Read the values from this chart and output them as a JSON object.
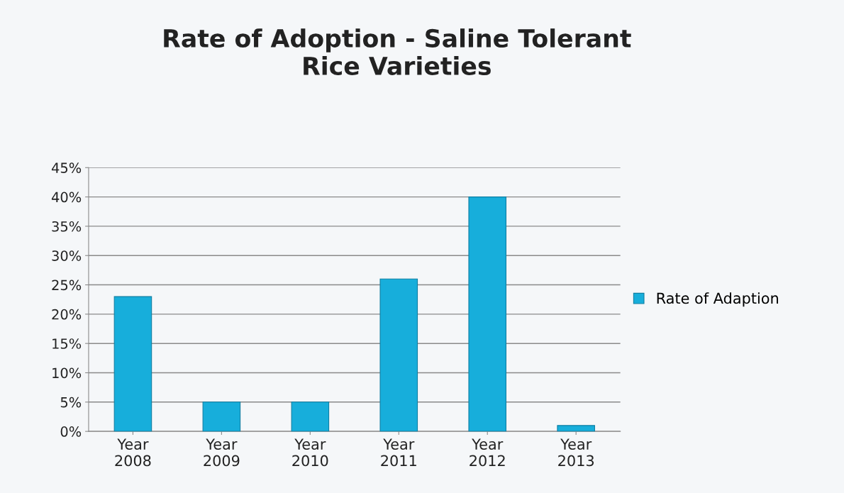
{
  "chart_data": {
    "type": "bar",
    "title": "Rate of Adoption - Saline Tolerant\nRice Varieties",
    "categories": [
      "Year\n2008",
      "Year\n2009",
      "Year\n2010",
      "Year\n2011",
      "Year\n2012",
      "Year\n2013"
    ],
    "series": [
      {
        "name": "Rate of Adaption",
        "color": "#17aedb",
        "values": [
          23,
          5,
          5,
          26,
          40,
          1
        ]
      }
    ],
    "ylim": [
      0,
      45
    ],
    "yticks": [
      {
        "value": 0,
        "label": "0%"
      },
      {
        "value": 5,
        "label": "5%"
      },
      {
        "value": 10,
        "label": "10%"
      },
      {
        "value": 15,
        "label": "15%"
      },
      {
        "value": 20,
        "label": "20%"
      },
      {
        "value": 25,
        "label": "25%"
      },
      {
        "value": 30,
        "label": "30%"
      },
      {
        "value": 35,
        "label": "35%"
      },
      {
        "value": 40,
        "label": "40%"
      },
      {
        "value": 45,
        "label": "45%"
      }
    ],
    "grid": "y",
    "legend": "right"
  }
}
